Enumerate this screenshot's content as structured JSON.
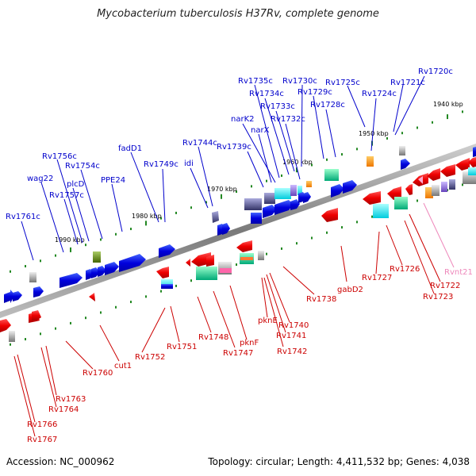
{
  "title": "Mycobacterium tuberculosis H37Rv, complete genome",
  "accession": "Accession: NC_000962",
  "topology": "Topology: circular; Length: 4,411,532 bp; Genes: 4,038",
  "colors": {
    "forward_label": "#0000cc",
    "reverse_label": "#cc0000",
    "rna_label": "#ee88bb",
    "forward_gene": "#0000ee",
    "reverse_gene": "#ee0000",
    "backbone": "#888888",
    "tick": "#228822"
  },
  "kbp_ticks": [
    "1940 kbp",
    "1950 kbp",
    "1960 kbp",
    "1970 kbp",
    "1980 kbp",
    "1990 kbp"
  ],
  "forward_labels": [
    "Rv1720c",
    "Rv1721c",
    "Rv1724c",
    "Rv1725c",
    "Rv1728c",
    "Rv1729c",
    "Rv1730c",
    "Rv1732c",
    "Rv1733c",
    "Rv1734c",
    "Rv1735c",
    "narK2",
    "narX",
    "Rv1739c",
    "Rv1744c",
    "idi",
    "Rv1749c",
    "fadD1",
    "PPE24",
    "Rv1754c",
    "plcD",
    "Rv1756c",
    "Rv1757c",
    "wag22",
    "Rv1761c"
  ],
  "reverse_labels": [
    "Rvnt21",
    "Rv1722",
    "Rv1723",
    "Rv1726",
    "Rv1727",
    "gabD2",
    "Rv1738",
    "Rv1740",
    "Rv1741",
    "pknE",
    "Rv1742",
    "pknF",
    "Rv1747",
    "Rv1748",
    "Rv1751",
    "Rv1752",
    "cut1",
    "Rv1760",
    "Rv1763",
    "Rv1764",
    "Rv1766",
    "Rv1767"
  ]
}
